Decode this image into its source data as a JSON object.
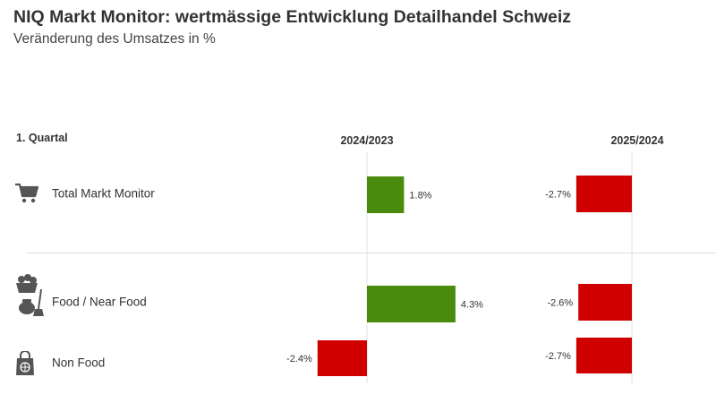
{
  "chart_data": {
    "type": "bar",
    "title": "NIQ Markt Monitor: wertmässige Entwicklung Detailhandel Schweiz",
    "subtitle": "Veränderung des Umsatzes in %",
    "section_label": "1. Quartal",
    "series": [
      {
        "name": "2024/2023",
        "values": [
          1.8,
          4.3,
          -2.4
        ]
      },
      {
        "name": "2025/2024",
        "values": [
          -2.7,
          -2.6,
          -2.7
        ]
      }
    ],
    "categories": [
      "Total Markt Monitor",
      "Food / Near Food",
      "Non Food"
    ],
    "value_labels": {
      "2024/2023": [
        "1.8%",
        "4.3%",
        "-2.4%"
      ],
      "2025/2024": [
        "-2.7%",
        "-2.6%",
        "-2.7%"
      ]
    },
    "colors": {
      "positive": "#4a8a0c",
      "negative": "#d00000",
      "gridline": "#e2e2e2"
    },
    "icons": [
      "shopping-cart-icon",
      "food-basket-and-cleaning-icon",
      "shopping-bag-icon"
    ]
  }
}
